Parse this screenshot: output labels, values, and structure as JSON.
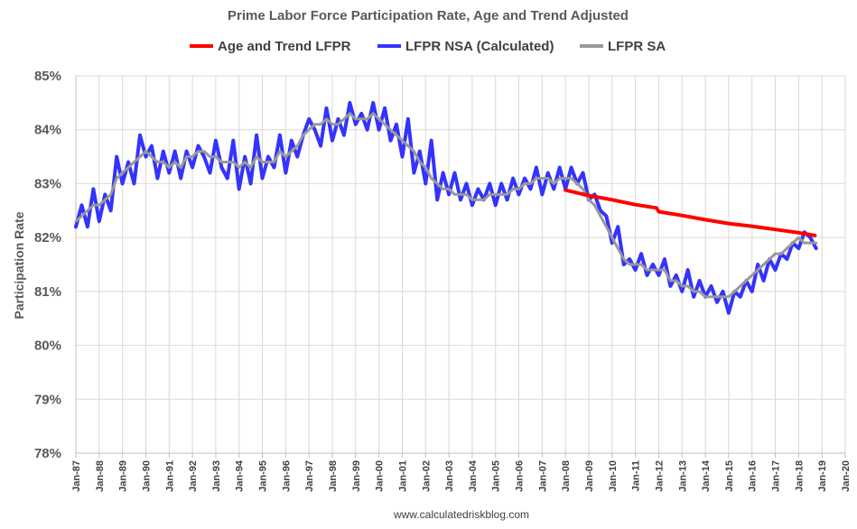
{
  "chart_data": {
    "type": "line",
    "title": "Prime Labor Force Participation Rate, Age and Trend Adjusted",
    "ylabel": "Participation Rate",
    "xlabel": "",
    "ylim": [
      78,
      85
    ],
    "xlim": [
      "Jan-87",
      "Jan-20"
    ],
    "y_ticks": [
      "78%",
      "79%",
      "80%",
      "81%",
      "82%",
      "83%",
      "84%",
      "85%"
    ],
    "x_ticks": [
      "Jan-87",
      "Jan-88",
      "Jan-89",
      "Jan-90",
      "Jan-91",
      "Jan-92",
      "Jan-93",
      "Jan-94",
      "Jan-95",
      "Jan-96",
      "Jan-97",
      "Jan-98",
      "Jan-99",
      "Jan-00",
      "Jan-01",
      "Jan-02",
      "Jan-03",
      "Jan-04",
      "Jan-05",
      "Jan-06",
      "Jan-07",
      "Jan-08",
      "Jan-09",
      "Jan-10",
      "Jan-11",
      "Jan-12",
      "Jan-13",
      "Jan-14",
      "Jan-15",
      "Jan-16",
      "Jan-17",
      "Jan-18",
      "Jan-19",
      "Jan-20"
    ],
    "grid": true,
    "legend_position": "top",
    "source": "www.calculatedriskblog.com",
    "series": [
      {
        "name": "Age and Trend LFPR",
        "color": "#ff0000",
        "x": [
          2008.0,
          2009.0,
          2010.0,
          2011.0,
          2011.9,
          2012.0,
          2013.0,
          2014.0,
          2015.0,
          2016.0,
          2017.0,
          2018.0,
          2018.7
        ],
        "y": [
          82.88,
          82.78,
          82.7,
          82.61,
          82.55,
          82.48,
          82.41,
          82.33,
          82.26,
          82.21,
          82.15,
          82.09,
          82.04
        ]
      },
      {
        "name": "LFPR NSA (Calculated)",
        "color": "#3333ff",
        "x": [
          1987.0,
          1987.25,
          1987.5,
          1987.75,
          1988.0,
          1988.25,
          1988.5,
          1988.75,
          1989.0,
          1989.25,
          1989.5,
          1989.75,
          1990.0,
          1990.25,
          1990.5,
          1990.75,
          1991.0,
          1991.25,
          1991.5,
          1991.75,
          1992.0,
          1992.25,
          1992.5,
          1992.75,
          1993.0,
          1993.25,
          1993.5,
          1993.75,
          1994.0,
          1994.25,
          1994.5,
          1994.75,
          1995.0,
          1995.25,
          1995.5,
          1995.75,
          1996.0,
          1996.25,
          1996.5,
          1996.75,
          1997.0,
          1997.25,
          1997.5,
          1997.75,
          1998.0,
          1998.25,
          1998.5,
          1998.75,
          1999.0,
          1999.25,
          1999.5,
          1999.75,
          2000.0,
          2000.25,
          2000.5,
          2000.75,
          2001.0,
          2001.25,
          2001.5,
          2001.75,
          2002.0,
          2002.25,
          2002.5,
          2002.75,
          2003.0,
          2003.25,
          2003.5,
          2003.75,
          2004.0,
          2004.25,
          2004.5,
          2004.75,
          2005.0,
          2005.25,
          2005.5,
          2005.75,
          2006.0,
          2006.25,
          2006.5,
          2006.75,
          2007.0,
          2007.25,
          2007.5,
          2007.75,
          2008.0,
          2008.25,
          2008.5,
          2008.75,
          2009.0,
          2009.25,
          2009.5,
          2009.75,
          2010.0,
          2010.25,
          2010.5,
          2010.75,
          2011.0,
          2011.25,
          2011.5,
          2011.75,
          2012.0,
          2012.25,
          2012.5,
          2012.75,
          2013.0,
          2013.25,
          2013.5,
          2013.75,
          2014.0,
          2014.25,
          2014.5,
          2014.75,
          2015.0,
          2015.25,
          2015.5,
          2015.75,
          2016.0,
          2016.25,
          2016.5,
          2016.75,
          2017.0,
          2017.25,
          2017.5,
          2017.75,
          2018.0,
          2018.25,
          2018.5,
          2018.75
        ],
        "y": [
          82.2,
          82.6,
          82.2,
          82.9,
          82.3,
          82.8,
          82.5,
          83.5,
          83.0,
          83.4,
          83.0,
          83.9,
          83.5,
          83.7,
          83.1,
          83.6,
          83.2,
          83.6,
          83.1,
          83.6,
          83.3,
          83.7,
          83.5,
          83.2,
          83.8,
          83.3,
          83.1,
          83.8,
          82.9,
          83.5,
          83.0,
          83.9,
          83.1,
          83.5,
          83.3,
          83.9,
          83.2,
          83.8,
          83.5,
          83.9,
          84.2,
          84.0,
          83.7,
          84.4,
          83.8,
          84.2,
          83.9,
          84.5,
          84.1,
          84.3,
          84.0,
          84.5,
          84.0,
          84.4,
          83.8,
          84.1,
          83.5,
          84.2,
          83.2,
          83.6,
          83.0,
          83.8,
          82.7,
          83.2,
          82.8,
          83.2,
          82.7,
          83.0,
          82.6,
          82.9,
          82.7,
          83.0,
          82.6,
          83.0,
          82.7,
          83.1,
          82.8,
          83.1,
          82.9,
          83.3,
          82.8,
          83.2,
          82.9,
          83.3,
          82.9,
          83.3,
          83.0,
          83.2,
          82.7,
          82.8,
          82.5,
          82.4,
          81.9,
          82.2,
          81.5,
          81.6,
          81.4,
          81.7,
          81.3,
          81.5,
          81.3,
          81.6,
          81.1,
          81.3,
          81.0,
          81.4,
          80.9,
          81.2,
          80.9,
          81.1,
          80.8,
          81.0,
          80.6,
          81.0,
          80.9,
          81.2,
          81.0,
          81.5,
          81.2,
          81.6,
          81.4,
          81.7,
          81.6,
          81.9,
          81.8,
          82.1,
          82.0,
          81.8
        ]
      },
      {
        "name": "LFPR SA",
        "color": "#999999",
        "x": [
          1987.0,
          1987.25,
          1987.5,
          1987.75,
          1988.0,
          1988.25,
          1988.5,
          1988.75,
          1989.0,
          1989.25,
          1989.5,
          1989.75,
          1990.0,
          1990.25,
          1990.5,
          1990.75,
          1991.0,
          1991.25,
          1991.5,
          1991.75,
          1992.0,
          1992.25,
          1992.5,
          1992.75,
          1993.0,
          1993.25,
          1993.5,
          1993.75,
          1994.0,
          1994.25,
          1994.5,
          1994.75,
          1995.0,
          1995.25,
          1995.5,
          1995.75,
          1996.0,
          1996.25,
          1996.5,
          1996.75,
          1997.0,
          1997.25,
          1997.5,
          1997.75,
          1998.0,
          1998.25,
          1998.5,
          1998.75,
          1999.0,
          1999.25,
          1999.5,
          1999.75,
          2000.0,
          2000.25,
          2000.5,
          2000.75,
          2001.0,
          2001.25,
          2001.5,
          2001.75,
          2002.0,
          2002.25,
          2002.5,
          2002.75,
          2003.0,
          2003.25,
          2003.5,
          2003.75,
          2004.0,
          2004.25,
          2004.5,
          2004.75,
          2005.0,
          2005.25,
          2005.5,
          2005.75,
          2006.0,
          2006.25,
          2006.5,
          2006.75,
          2007.0,
          2007.25,
          2007.5,
          2007.75,
          2008.0,
          2008.25,
          2008.5,
          2008.75,
          2009.0,
          2009.25,
          2009.5,
          2009.75,
          2010.0,
          2010.25,
          2010.5,
          2010.75,
          2011.0,
          2011.25,
          2011.5,
          2011.75,
          2012.0,
          2012.25,
          2012.5,
          2012.75,
          2013.0,
          2013.25,
          2013.5,
          2013.75,
          2014.0,
          2014.25,
          2014.5,
          2014.75,
          2015.0,
          2015.25,
          2015.5,
          2015.75,
          2016.0,
          2016.25,
          2016.5,
          2016.75,
          2017.0,
          2017.25,
          2017.5,
          2017.75,
          2018.0,
          2018.25,
          2018.5,
          2018.75
        ],
        "y": [
          82.3,
          82.4,
          82.5,
          82.6,
          82.6,
          82.7,
          82.8,
          83.1,
          83.2,
          83.3,
          83.4,
          83.5,
          83.6,
          83.5,
          83.4,
          83.4,
          83.3,
          83.4,
          83.3,
          83.5,
          83.5,
          83.6,
          83.6,
          83.5,
          83.5,
          83.4,
          83.4,
          83.4,
          83.3,
          83.4,
          83.3,
          83.5,
          83.4,
          83.4,
          83.4,
          83.6,
          83.5,
          83.6,
          83.7,
          83.9,
          84.0,
          84.1,
          84.1,
          84.2,
          84.1,
          84.1,
          84.2,
          84.3,
          84.2,
          84.2,
          84.2,
          84.3,
          84.2,
          84.1,
          84.0,
          83.9,
          83.8,
          83.7,
          83.6,
          83.4,
          83.3,
          83.1,
          83.0,
          82.9,
          82.9,
          82.8,
          82.8,
          82.8,
          82.7,
          82.7,
          82.7,
          82.8,
          82.8,
          82.8,
          82.8,
          82.9,
          82.9,
          83.0,
          83.0,
          83.1,
          83.1,
          83.1,
          83.0,
          83.1,
          83.1,
          83.1,
          83.0,
          82.9,
          82.7,
          82.6,
          82.4,
          82.2,
          82.0,
          81.8,
          81.6,
          81.5,
          81.5,
          81.5,
          81.4,
          81.4,
          81.4,
          81.4,
          81.2,
          81.2,
          81.1,
          81.1,
          81.0,
          81.0,
          80.9,
          80.9,
          80.9,
          80.9,
          80.9,
          81.0,
          81.1,
          81.2,
          81.3,
          81.4,
          81.5,
          81.6,
          81.7,
          81.7,
          81.8,
          81.9,
          82.0,
          81.9,
          81.9,
          81.9
        ]
      }
    ]
  }
}
